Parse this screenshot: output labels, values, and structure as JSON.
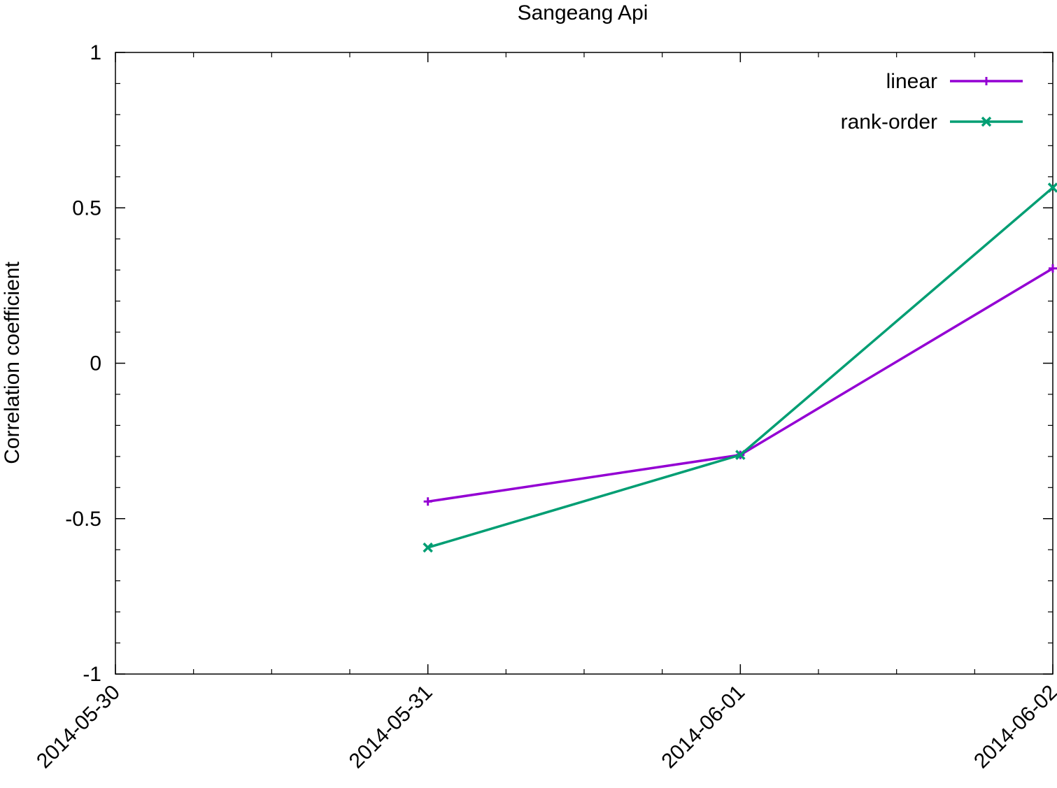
{
  "chart_data": {
    "type": "line",
    "title": "Sangeang Api",
    "xlabel": "",
    "ylabel": "Correlation coefficient",
    "x_ticks": [
      "2014-05-30",
      "2014-05-31",
      "2014-06-01",
      "2014-06-02"
    ],
    "y_ticks": [
      "1",
      "0.5",
      "0",
      "-0.5",
      "-1"
    ],
    "xlim": [
      "2014-05-30",
      "2014-06-02"
    ],
    "ylim": [
      -1,
      1
    ],
    "legend_position": "top-right",
    "grid": false,
    "series": [
      {
        "name": "linear",
        "color": "#9400d3",
        "marker": "plus",
        "x": [
          "2014-05-31",
          "2014-06-01",
          "2014-06-02"
        ],
        "y": [
          -0.445,
          -0.295,
          0.305
        ]
      },
      {
        "name": "rank-order",
        "color": "#009e73",
        "marker": "cross",
        "x": [
          "2014-05-31",
          "2014-06-01",
          "2014-06-02"
        ],
        "y": [
          -0.593,
          -0.295,
          0.565
        ]
      }
    ]
  }
}
